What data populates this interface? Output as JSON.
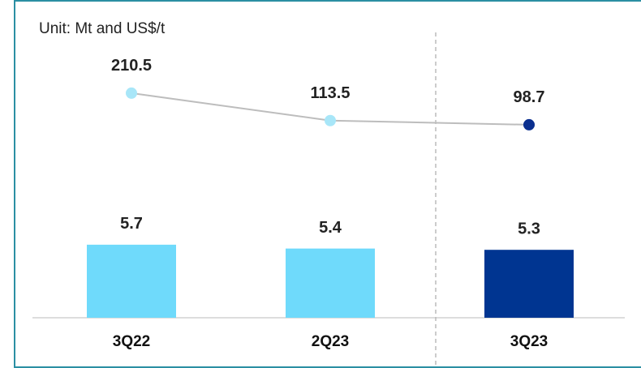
{
  "chart_data": {
    "type": "bar-line",
    "unit_label": "Unit: Mt and US$/t",
    "categories": [
      "3Q22",
      "2Q23",
      "3Q23"
    ],
    "series": [
      {
        "type": "bar",
        "colors": [
          "#6fdafb",
          "#6fdafb",
          "#003591"
        ],
        "values": [
          5.7,
          5.4,
          5.3
        ]
      },
      {
        "type": "line",
        "axis": "y2",
        "color": "#bdbdbd",
        "colors": [
          "#a8e6f8",
          "#a8e6f8",
          "#0b2f8f"
        ],
        "values": [
          210.5,
          113.5,
          98.7
        ]
      }
    ],
    "ylim": [
      0,
      21
    ],
    "y2lim": [
      -584,
      368
    ]
  }
}
